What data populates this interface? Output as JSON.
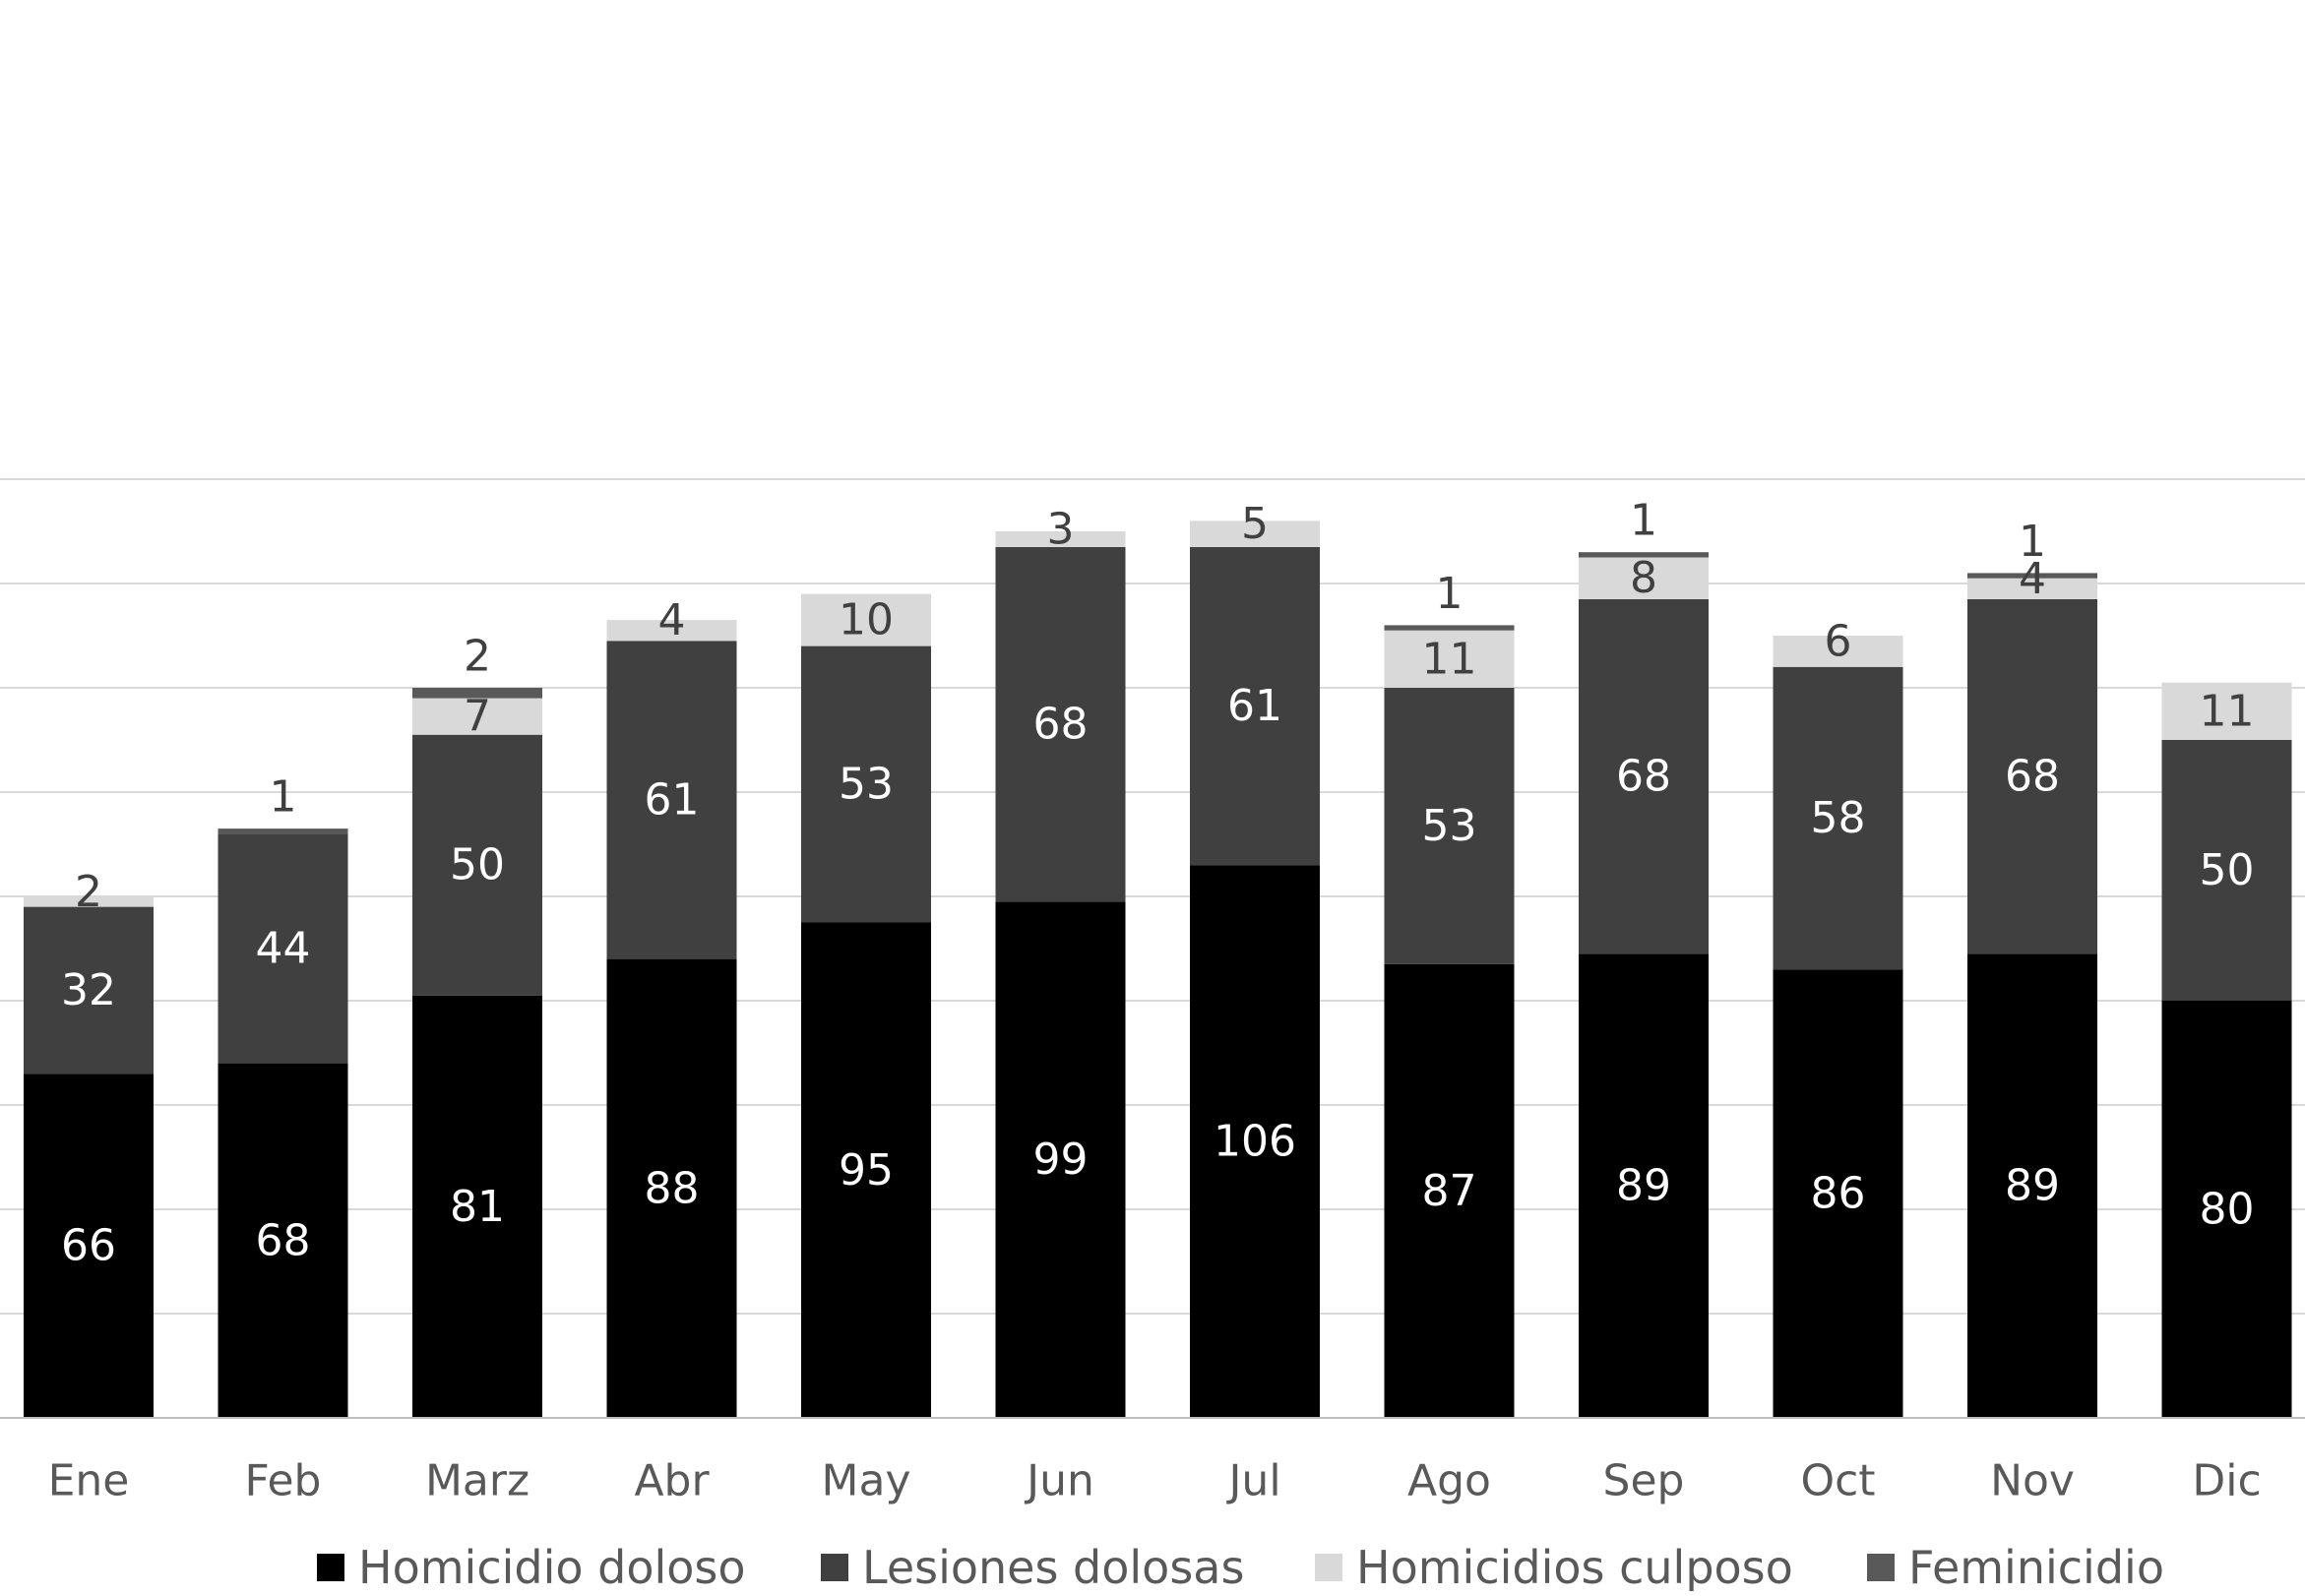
{
  "chart_data": {
    "type": "bar",
    "stacked": true,
    "title": "",
    "xlabel": "",
    "ylabel": "",
    "ylim": [
      0,
      180
    ],
    "grid": true,
    "legend_position": "bottom",
    "categories": [
      "Ene",
      "Feb",
      "Marz",
      "Abr",
      "May",
      "Jun",
      "Jul",
      "Ago",
      "Sep",
      "Oct",
      "Nov",
      "Dic"
    ],
    "series": [
      {
        "name": "Homicidio doloso",
        "color": "#000000",
        "label_color": "#ffffff",
        "values": [
          66,
          68,
          81,
          88,
          95,
          99,
          106,
          87,
          89,
          86,
          89,
          80
        ]
      },
      {
        "name": "Lesiones dolosas",
        "color": "#404040",
        "label_color": "#ffffff",
        "values": [
          32,
          44,
          50,
          61,
          53,
          68,
          61,
          53,
          68,
          58,
          68,
          50
        ]
      },
      {
        "name": "Homicidios culposo",
        "color": "#d9d9d9",
        "label_color": "#404040",
        "values": [
          2,
          null,
          7,
          4,
          10,
          3,
          5,
          11,
          8,
          6,
          4,
          11
        ]
      },
      {
        "name": "Feminicidio",
        "color": "#595959",
        "label_color": "#404040",
        "values": [
          null,
          1,
          2,
          null,
          null,
          null,
          null,
          1,
          1,
          null,
          1,
          null
        ]
      }
    ]
  }
}
